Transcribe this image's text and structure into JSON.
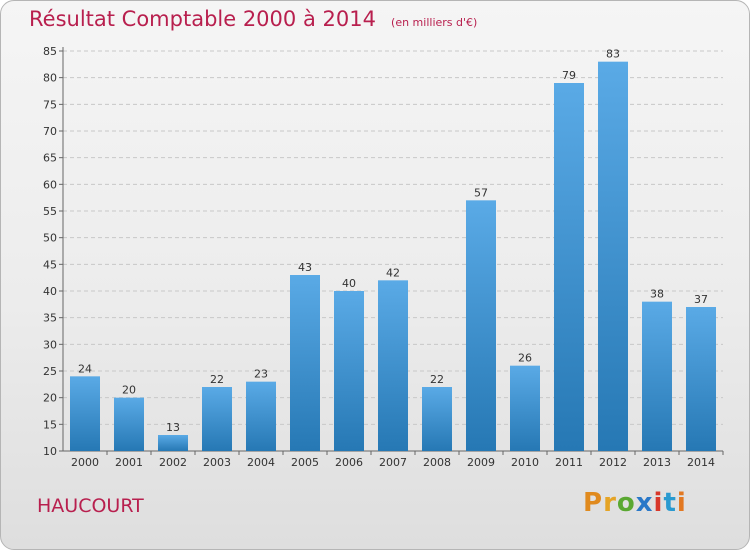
{
  "header": {
    "title": "Résultat Comptable 2000 à 2014",
    "subtitle": "(en milliers d'€)"
  },
  "commune": "HAUCOURT",
  "logo": {
    "parts": [
      "P",
      "r",
      "o",
      "x",
      "i",
      "t",
      "i"
    ]
  },
  "colors": {
    "title": "#b81f4e",
    "bar_top": "#5aaae6",
    "bar_bottom": "#2678b4",
    "grid": "#c8c8c8"
  },
  "chart_data": {
    "type": "bar",
    "title": "Résultat Comptable 2000 à 2014",
    "subtitle": "(en milliers d'€)",
    "xlabel": "",
    "ylabel": "",
    "categories": [
      "2000",
      "2001",
      "2002",
      "2003",
      "2004",
      "2005",
      "2006",
      "2007",
      "2008",
      "2009",
      "2010",
      "2011",
      "2012",
      "2013",
      "2014"
    ],
    "values": [
      24,
      20,
      13,
      22,
      23,
      43,
      40,
      42,
      22,
      57,
      26,
      79,
      83,
      38,
      37
    ],
    "ylim": [
      10,
      85
    ],
    "yticks": [
      10,
      15,
      20,
      25,
      30,
      35,
      40,
      45,
      50,
      55,
      60,
      65,
      70,
      75,
      80,
      85
    ],
    "grid": true,
    "data_labels": true
  }
}
